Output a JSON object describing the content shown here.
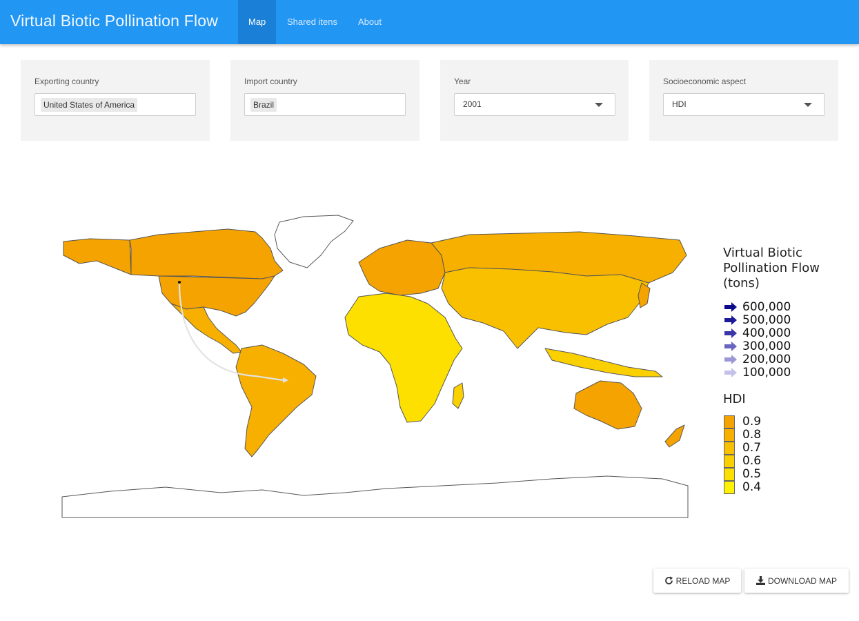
{
  "navbar": {
    "brand": "Virtual Biotic Pollination Flow",
    "tabs": [
      {
        "label": "Map",
        "active": true
      },
      {
        "label": "Shared itens",
        "active": false
      },
      {
        "label": "About",
        "active": false
      }
    ]
  },
  "filters": {
    "exporting": {
      "label": "Exporting country",
      "value": "United States of America"
    },
    "import": {
      "label": "Import country",
      "value": "Brazil"
    },
    "year": {
      "label": "Year",
      "value": "2001"
    },
    "socio": {
      "label": "Socioeconomic aspect",
      "value": "HDI"
    }
  },
  "legend": {
    "flow_title_line1": "Virtual Biotic",
    "flow_title_line2": "Pollination Flow (tons)",
    "flow_items": [
      {
        "label": "600,000",
        "color": "#0c0a8a"
      },
      {
        "label": "500,000",
        "color": "#1d1a9a"
      },
      {
        "label": "400,000",
        "color": "#3a36a8"
      },
      {
        "label": "300,000",
        "color": "#6a66bf"
      },
      {
        "label": "200,000",
        "color": "#9b98d6"
      },
      {
        "label": "100,000",
        "color": "#c4c2e8"
      }
    ],
    "hdi_title": "HDI",
    "hdi_items": [
      {
        "label": "0.9",
        "color": "#f5a300"
      },
      {
        "label": "0.8",
        "color": "#f7b000"
      },
      {
        "label": "0.7",
        "color": "#f9c000"
      },
      {
        "label": "0.6",
        "color": "#fbd000"
      },
      {
        "label": "0.5",
        "color": "#fde000"
      },
      {
        "label": "0.4",
        "color": "#fff200"
      }
    ]
  },
  "buttons": {
    "reload": "RELOAD MAP",
    "download": "DOWNLOAD MAP"
  },
  "icons": {
    "reload": "refresh-icon",
    "download": "download-icon"
  },
  "colors": {
    "navbar": "#2196f3",
    "flow_line": "#e3e3e3"
  }
}
